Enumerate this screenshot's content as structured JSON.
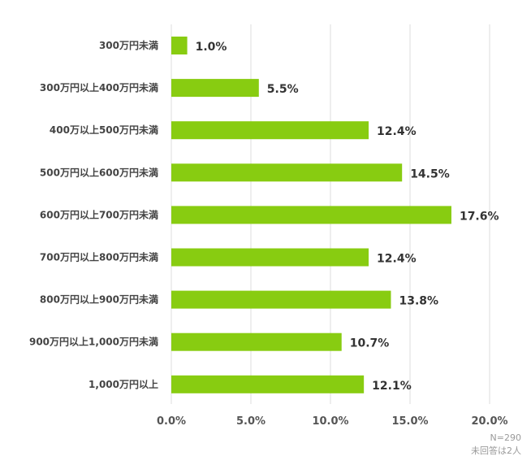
{
  "chart_data": {
    "type": "bar",
    "orientation": "horizontal",
    "categories": [
      "300万円未満",
      "300万円以上400万円未満",
      "400万以上500万円未満",
      "500万円以上600万円未満",
      "600万円以上700万円未満",
      "700万円以上800万円未満",
      "800万円以上900万円未満",
      "900万円以上1,000万円未満",
      "1,000万円以上"
    ],
    "values": [
      1.0,
      5.5,
      12.4,
      14.5,
      17.6,
      12.4,
      13.8,
      10.7,
      12.1
    ],
    "value_labels": [
      "1.0%",
      "5.5%",
      "12.4%",
      "14.5%",
      "17.6%",
      "12.4%",
      "13.8%",
      "10.7%",
      "12.1%"
    ],
    "xlim": [
      0,
      20
    ],
    "x_ticks": [
      0,
      5,
      10,
      15,
      20
    ],
    "x_tick_labels": [
      "0.0%",
      "5.0%",
      "10.0%",
      "15.0%",
      "20.0%"
    ],
    "grid": "vertical",
    "bar_color": "#88cc11"
  },
  "notes": {
    "sample_size": "N=290",
    "no_answer": "未回答は2人"
  }
}
